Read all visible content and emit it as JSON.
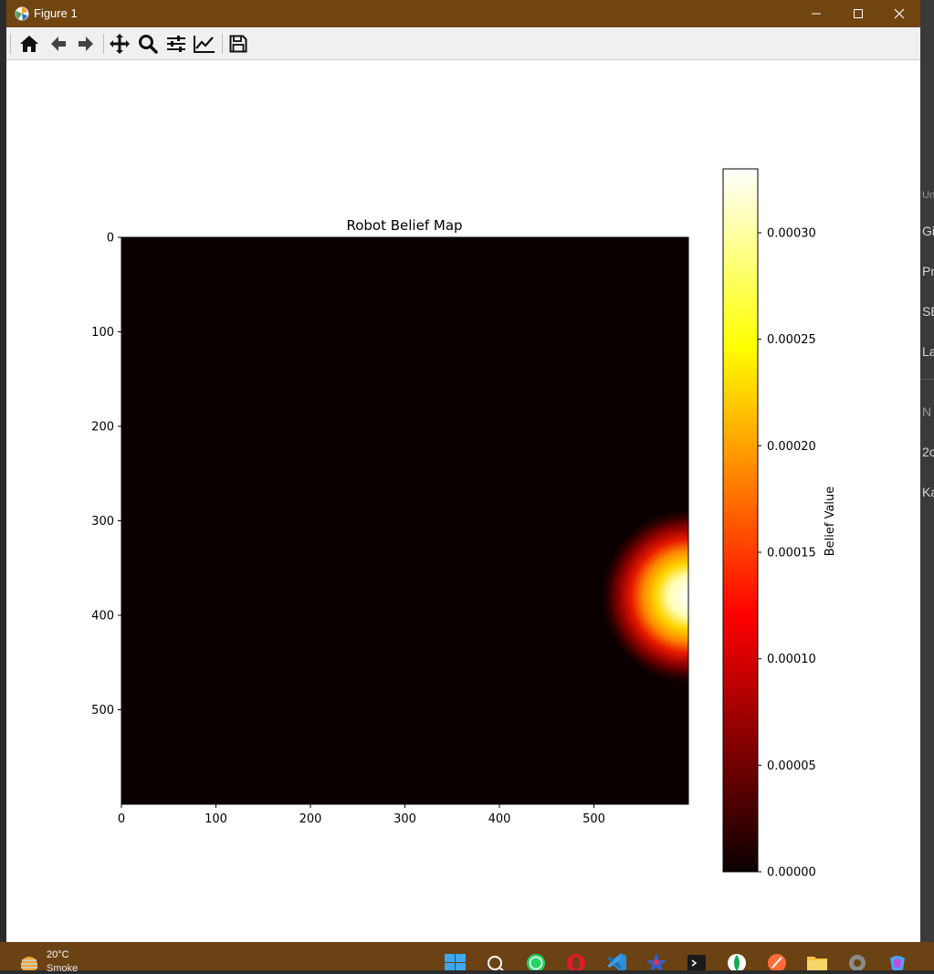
{
  "window": {
    "title": "Figure 1"
  },
  "toolbar": {
    "buttons": [
      {
        "name": "home-icon"
      },
      {
        "name": "back-icon"
      },
      {
        "name": "forward-icon"
      },
      {
        "name": "pan-icon"
      },
      {
        "name": "zoom-icon"
      },
      {
        "name": "configure-subplots-icon"
      },
      {
        "name": "edit-axis-icon"
      },
      {
        "name": "save-icon"
      }
    ]
  },
  "chart_data": {
    "type": "heatmap",
    "title": "Robot Belief Map",
    "colormap": "hot",
    "xlim": [
      0,
      600
    ],
    "ylim": [
      600,
      0
    ],
    "x_ticks": [
      "0",
      "100",
      "200",
      "300",
      "400",
      "500"
    ],
    "y_ticks": [
      "0",
      "100",
      "200",
      "300",
      "400",
      "500"
    ],
    "peak": {
      "x": 600,
      "y": 380,
      "value": 0.00033
    },
    "colorbar": {
      "label": "Belief Value",
      "range": [
        0,
        0.00033
      ],
      "ticks": [
        "0.00000",
        "0.00005",
        "0.00010",
        "0.00015",
        "0.00020",
        "0.00025",
        "0.00030"
      ]
    }
  },
  "background_app": {
    "labels": [
      "Uni",
      "Gi",
      "Pr",
      "SE",
      "La",
      "N",
      "2c",
      "Ka"
    ]
  },
  "taskbar": {
    "weather": {
      "temp": "20°C",
      "desc": "Smoke"
    },
    "apps": [
      "start-icon",
      "search-icon",
      "whatsapp-icon",
      "opera-icon",
      "vscode-icon",
      "app-icon",
      "terminal-icon",
      "mongodb-icon",
      "postman-icon",
      "file-explorer-icon",
      "settings-icon",
      "copilot-icon"
    ],
    "colors": {
      "accent": "#704510"
    }
  }
}
